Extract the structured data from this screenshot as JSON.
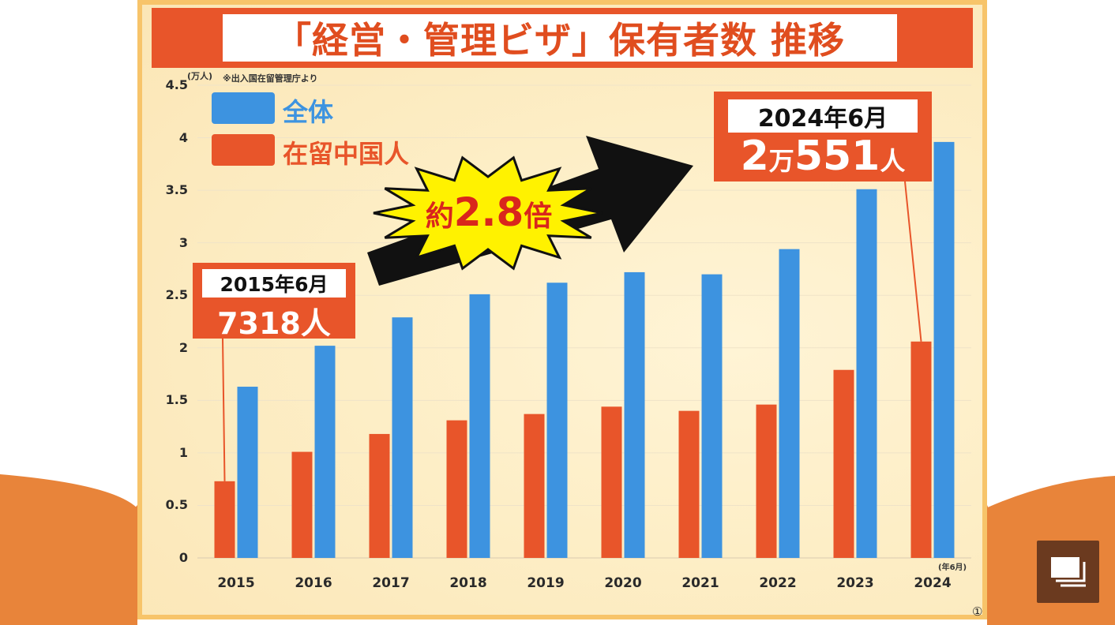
{
  "title": "「経営・管理ビザ」保有者数 推移",
  "unit_label": "(万人)",
  "source_note": "※出入国在留管理庁より",
  "x_unit_label": "(年6月)",
  "page_marker": "①",
  "legend": [
    {
      "label": "全体",
      "color": "#3d93e0"
    },
    {
      "label": "在留中国人",
      "color": "#e8552a"
    }
  ],
  "callout_2015": {
    "date": "2015年6月",
    "value": "7318人"
  },
  "callout_2024": {
    "date": "2024年6月",
    "value_num1": "2",
    "value_unit1": "万",
    "value_num2": "551",
    "value_unit2": "人"
  },
  "burst": {
    "prefix": "約",
    "number": "2.8",
    "suffix": "倍"
  },
  "overlay_button_icon": "slideshow-icon",
  "chart_data": {
    "type": "bar",
    "categories": [
      "2015",
      "2016",
      "2017",
      "2018",
      "2019",
      "2020",
      "2021",
      "2022",
      "2023",
      "2024"
    ],
    "series": [
      {
        "name": "在留中国人",
        "values": [
          0.73,
          1.01,
          1.18,
          1.31,
          1.37,
          1.44,
          1.4,
          1.46,
          1.79,
          2.06
        ]
      },
      {
        "name": "全体",
        "values": [
          1.63,
          2.02,
          2.29,
          2.51,
          2.62,
          2.72,
          2.7,
          2.94,
          3.51,
          3.96
        ]
      }
    ],
    "yticks": [
      "0",
      "0.5",
      "1",
      "1.5",
      "2",
      "2.5",
      "3",
      "3.5",
      "4",
      "4.5"
    ],
    "ylim": [
      0,
      4.5
    ],
    "ylabel": "(万人)",
    "xlabel": "(年6月)",
    "grid": true
  }
}
